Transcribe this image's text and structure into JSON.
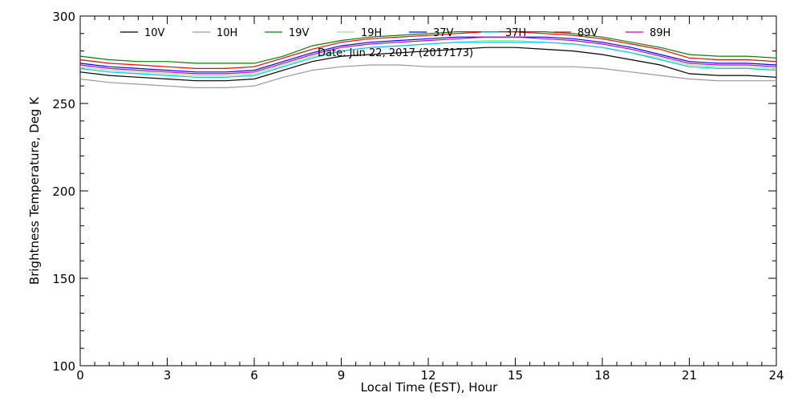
{
  "chart_data": {
    "type": "line",
    "xlabel": "Local Time (EST), Hour",
    "ylabel": "Brightness Temperature, Deg K",
    "annotation": "Date: Jun 22, 2017 (2017173)",
    "xlim": [
      0,
      24
    ],
    "ylim": [
      100,
      300
    ],
    "x_ticks": [
      0,
      3,
      6,
      9,
      12,
      15,
      18,
      21,
      24
    ],
    "y_ticks": [
      100,
      150,
      200,
      250,
      300
    ],
    "grid": false,
    "legend_placement": "top",
    "x": [
      0,
      1,
      2,
      3,
      4,
      5,
      6,
      7,
      8,
      9,
      10,
      11,
      12,
      13,
      14,
      15,
      16,
      17,
      18,
      19,
      20,
      21,
      22,
      23,
      24
    ],
    "series": [
      {
        "name": "10V",
        "color": "#000000",
        "values": [
          268,
          266,
          265,
          264,
          263,
          263,
          264,
          269,
          274,
          277,
          278,
          279,
          280,
          281,
          282,
          282,
          281,
          280,
          278,
          275,
          272,
          267,
          266,
          266,
          265
        ]
      },
      {
        "name": "10H",
        "color": "#999999",
        "values": [
          264,
          262,
          261,
          260,
          259,
          259,
          260,
          265,
          269,
          271,
          272,
          272,
          271,
          271,
          271,
          271,
          271,
          271,
          270,
          268,
          266,
          264,
          263,
          263,
          263
        ]
      },
      {
        "name": "19V",
        "color": "#008000",
        "values": [
          277,
          275,
          274,
          274,
          273,
          273,
          273,
          277,
          283,
          286,
          288,
          289,
          290,
          291,
          291,
          291,
          291,
          290,
          288,
          285,
          282,
          278,
          277,
          277,
          276
        ]
      },
      {
        "name": "19H",
        "color": "#90ee90",
        "values": [
          271,
          269,
          268,
          267,
          266,
          266,
          267,
          272,
          277,
          280,
          282,
          283,
          284,
          285,
          286,
          286,
          285,
          284,
          282,
          279,
          276,
          272,
          271,
          271,
          270
        ]
      },
      {
        "name": "37V",
        "color": "#0000ff",
        "values": [
          273,
          271,
          270,
          269,
          268,
          268,
          269,
          274,
          279,
          283,
          285,
          286,
          287,
          288,
          288,
          288,
          288,
          287,
          285,
          282,
          278,
          274,
          273,
          273,
          272
        ]
      },
      {
        "name": "37H",
        "color": "#00bfff",
        "values": [
          270,
          268,
          267,
          266,
          265,
          265,
          266,
          271,
          276,
          280,
          282,
          283,
          284,
          285,
          285,
          285,
          285,
          284,
          282,
          279,
          275,
          271,
          270,
          270,
          269
        ]
      },
      {
        "name": "89V",
        "color": "#ff0000",
        "values": [
          275,
          273,
          272,
          271,
          270,
          270,
          271,
          276,
          281,
          285,
          287,
          288,
          289,
          290,
          291,
          291,
          290,
          289,
          287,
          284,
          281,
          276,
          275,
          275,
          274
        ]
      },
      {
        "name": "89H",
        "color": "#c000c0",
        "values": [
          272,
          270,
          269,
          268,
          267,
          267,
          268,
          273,
          278,
          282,
          284,
          285,
          286,
          287,
          288,
          288,
          287,
          286,
          284,
          281,
          277,
          273,
          272,
          272,
          271
        ]
      }
    ]
  }
}
